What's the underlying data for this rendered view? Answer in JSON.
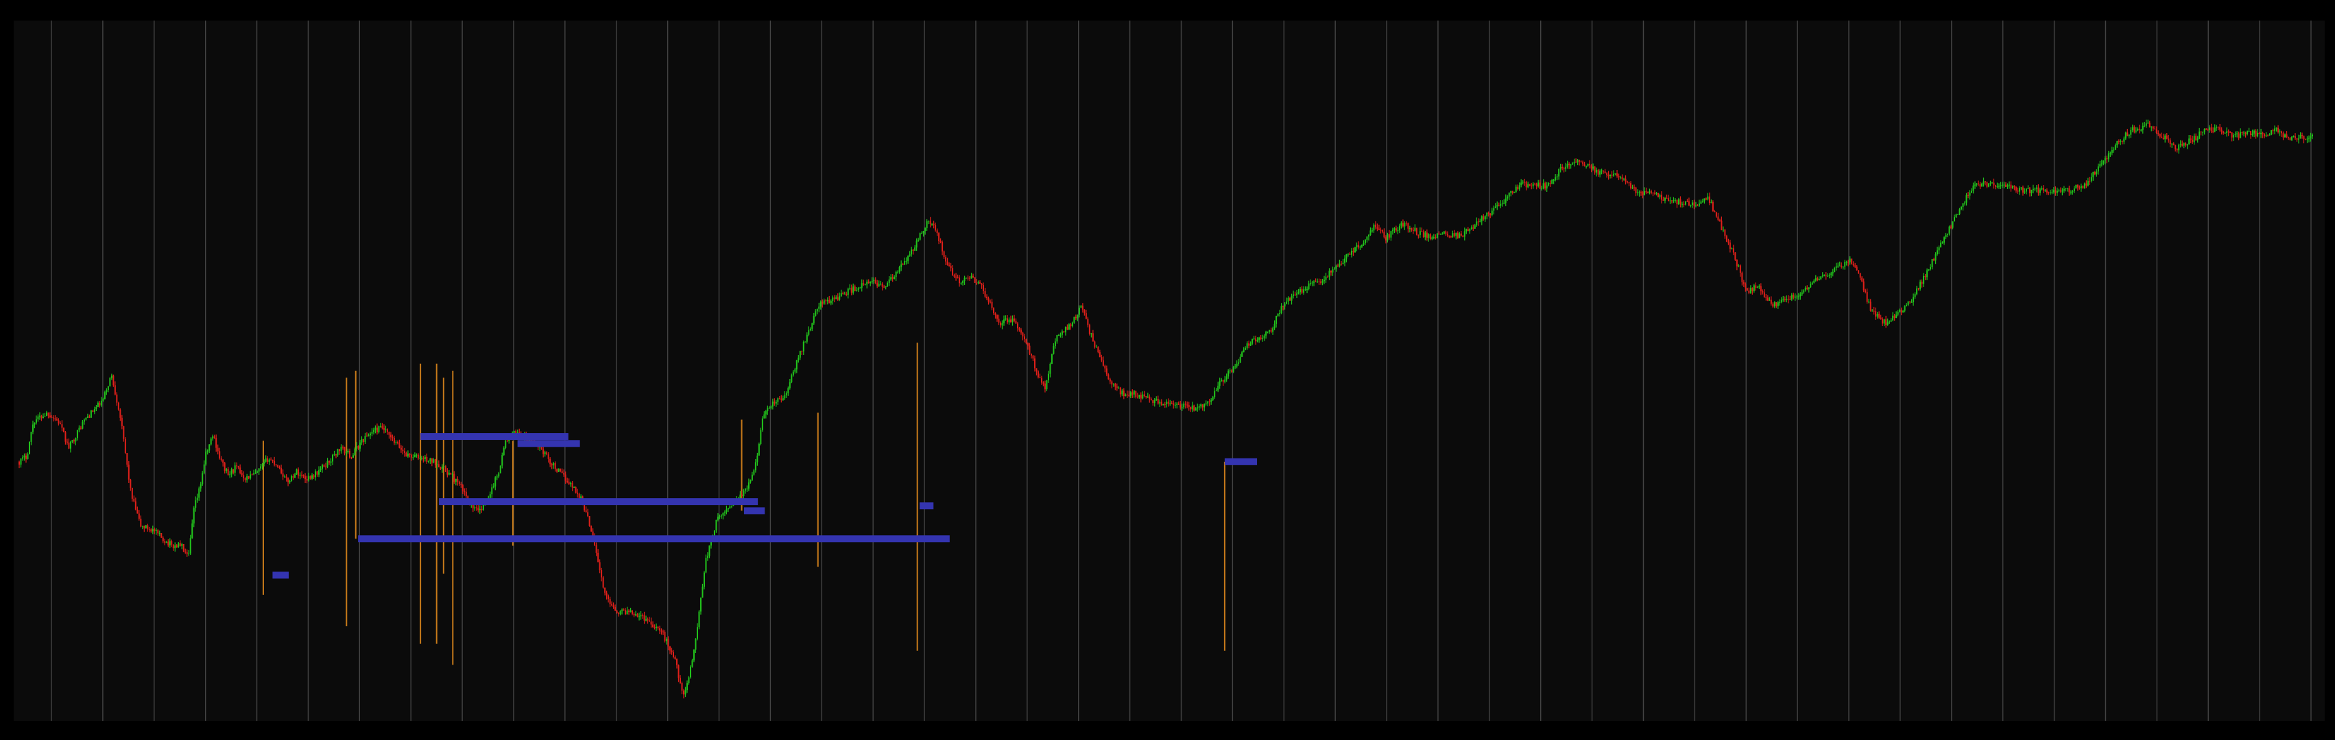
{
  "theme": {
    "background": "#000000",
    "plot_background": "#0b0b0b",
    "gridline": "#444444",
    "up_candle": "#22c51c",
    "down_candle": "#e0201a",
    "level_color": "#3434b0",
    "volume_spike": "#c77a1a"
  },
  "chart_data": {
    "type": "candlestick",
    "grid": true,
    "title": "",
    "xlabel": "",
    "ylabel": "",
    "x_range": [
      0,
      1000
    ],
    "y_range": [
      0,
      1000
    ],
    "vertical_gridline_count": 45,
    "price_path": [
      [
        0,
        370
      ],
      [
        8,
        378
      ],
      [
        15,
        430
      ],
      [
        30,
        442
      ],
      [
        42,
        428
      ],
      [
        52,
        390
      ],
      [
        68,
        430
      ],
      [
        88,
        460
      ],
      [
        97,
        498
      ],
      [
        106,
        440
      ],
      [
        118,
        320
      ],
      [
        128,
        275
      ],
      [
        140,
        270
      ],
      [
        152,
        255
      ],
      [
        162,
        245
      ],
      [
        170,
        248
      ],
      [
        178,
        226
      ],
      [
        184,
        300
      ],
      [
        190,
        330
      ],
      [
        196,
        378
      ],
      [
        204,
        410
      ],
      [
        212,
        372
      ],
      [
        220,
        350
      ],
      [
        228,
        362
      ],
      [
        238,
        346
      ],
      [
        250,
        352
      ],
      [
        262,
        375
      ],
      [
        272,
        365
      ],
      [
        282,
        340
      ],
      [
        292,
        355
      ],
      [
        302,
        345
      ],
      [
        312,
        352
      ],
      [
        326,
        370
      ],
      [
        338,
        390
      ],
      [
        350,
        378
      ],
      [
        360,
        400
      ],
      [
        372,
        415
      ],
      [
        382,
        420
      ],
      [
        394,
        400
      ],
      [
        408,
        380
      ],
      [
        424,
        375
      ],
      [
        440,
        368
      ],
      [
        456,
        348
      ],
      [
        466,
        330
      ],
      [
        476,
        305
      ],
      [
        484,
        295
      ],
      [
        494,
        320
      ],
      [
        504,
        352
      ],
      [
        512,
        400
      ],
      [
        524,
        415
      ],
      [
        534,
        402
      ],
      [
        548,
        392
      ],
      [
        560,
        368
      ],
      [
        570,
        352
      ],
      [
        580,
        338
      ],
      [
        592,
        315
      ],
      [
        604,
        262
      ],
      [
        616,
        175
      ],
      [
        630,
        148
      ],
      [
        644,
        150
      ],
      [
        660,
        138
      ],
      [
        676,
        120
      ],
      [
        690,
        80
      ],
      [
        700,
        20
      ],
      [
        712,
        105
      ],
      [
        722,
        220
      ],
      [
        734,
        282
      ],
      [
        748,
        305
      ],
      [
        764,
        325
      ],
      [
        774,
        355
      ],
      [
        782,
        430
      ],
      [
        792,
        455
      ],
      [
        806,
        465
      ],
      [
        822,
        530
      ],
      [
        842,
        602
      ],
      [
        858,
        610
      ],
      [
        874,
        622
      ],
      [
        888,
        630
      ],
      [
        900,
        635
      ],
      [
        912,
        628
      ],
      [
        926,
        652
      ],
      [
        940,
        680
      ],
      [
        956,
        725
      ],
      [
        966,
        710
      ],
      [
        976,
        660
      ],
      [
        990,
        635
      ],
      [
        1004,
        640
      ],
      [
        1012,
        630
      ],
      [
        1022,
        602
      ],
      [
        1032,
        575
      ],
      [
        1046,
        580
      ],
      [
        1062,
        538
      ],
      [
        1072,
        500
      ],
      [
        1080,
        480
      ],
      [
        1090,
        548
      ],
      [
        1098,
        562
      ],
      [
        1108,
        575
      ],
      [
        1118,
        598
      ],
      [
        1130,
        550
      ],
      [
        1148,
        488
      ],
      [
        1162,
        470
      ],
      [
        1176,
        470
      ],
      [
        1190,
        462
      ],
      [
        1206,
        455
      ],
      [
        1222,
        452
      ],
      [
        1238,
        448
      ],
      [
        1252,
        458
      ],
      [
        1264,
        485
      ],
      [
        1280,
        512
      ],
      [
        1296,
        548
      ],
      [
        1316,
        560
      ],
      [
        1332,
        605
      ],
      [
        1352,
        625
      ],
      [
        1374,
        640
      ],
      [
        1392,
        665
      ],
      [
        1412,
        690
      ],
      [
        1428,
        720
      ],
      [
        1438,
        698
      ],
      [
        1448,
        712
      ],
      [
        1458,
        720
      ],
      [
        1472,
        708
      ],
      [
        1486,
        700
      ],
      [
        1502,
        706
      ],
      [
        1518,
        702
      ],
      [
        1534,
        722
      ],
      [
        1552,
        740
      ],
      [
        1566,
        760
      ],
      [
        1580,
        778
      ],
      [
        1594,
        778
      ],
      [
        1608,
        776
      ],
      [
        1622,
        800
      ],
      [
        1640,
        815
      ],
      [
        1658,
        800
      ],
      [
        1672,
        792
      ],
      [
        1688,
        790
      ],
      [
        1700,
        770
      ],
      [
        1714,
        766
      ],
      [
        1732,
        758
      ],
      [
        1748,
        752
      ],
      [
        1762,
        748
      ],
      [
        1778,
        758
      ],
      [
        1790,
        722
      ],
      [
        1800,
        690
      ],
      [
        1810,
        655
      ],
      [
        1818,
        620
      ],
      [
        1830,
        628
      ],
      [
        1846,
        600
      ],
      [
        1860,
        608
      ],
      [
        1878,
        620
      ],
      [
        1894,
        640
      ],
      [
        1906,
        648
      ],
      [
        1918,
        658
      ],
      [
        1928,
        668
      ],
      [
        1938,
        640
      ],
      [
        1950,
        590
      ],
      [
        1964,
        575
      ],
      [
        1980,
        590
      ],
      [
        1994,
        612
      ],
      [
        2010,
        655
      ],
      [
        2030,
        710
      ],
      [
        2044,
        745
      ],
      [
        2058,
        778
      ],
      [
        2074,
        780
      ],
      [
        2092,
        775
      ],
      [
        2110,
        770
      ],
      [
        2128,
        770
      ],
      [
        2142,
        768
      ],
      [
        2158,
        770
      ],
      [
        2174,
        778
      ],
      [
        2190,
        805
      ],
      [
        2206,
        835
      ],
      [
        2224,
        860
      ],
      [
        2242,
        866
      ],
      [
        2256,
        850
      ],
      [
        2270,
        832
      ],
      [
        2288,
        845
      ],
      [
        2302,
        860
      ],
      [
        2318,
        860
      ],
      [
        2332,
        848
      ],
      [
        2346,
        856
      ],
      [
        2362,
        850
      ],
      [
        2376,
        860
      ],
      [
        2388,
        846
      ],
      [
        2400,
        848
      ],
      [
        2414,
        848
      ]
    ],
    "levels": [
      {
        "x_from": 0.112,
        "x_to": 0.119,
        "y": 0.208
      },
      {
        "x_from": 0.149,
        "x_to": 0.405,
        "y": 0.26
      },
      {
        "x_from": 0.176,
        "x_to": 0.24,
        "y": 0.406
      },
      {
        "x_from": 0.218,
        "x_to": 0.245,
        "y": 0.396
      },
      {
        "x_from": 0.184,
        "x_to": 0.322,
        "y": 0.313
      },
      {
        "x_from": 0.316,
        "x_to": 0.325,
        "y": 0.3
      },
      {
        "x_from": 0.392,
        "x_to": 0.398,
        "y": 0.307
      },
      {
        "x_from": 0.524,
        "x_to": 0.538,
        "y": 0.37
      }
    ],
    "spikes": [
      {
        "x": 0.108,
        "y_top": 0.4,
        "y_bottom": 0.18
      },
      {
        "x": 0.144,
        "y_top": 0.135,
        "y_bottom": 0.49
      },
      {
        "x": 0.148,
        "y_top": 0.5,
        "y_bottom": 0.26
      },
      {
        "x": 0.176,
        "y_top": 0.11,
        "y_bottom": 0.51
      },
      {
        "x": 0.183,
        "y_top": 0.11,
        "y_bottom": 0.51
      },
      {
        "x": 0.186,
        "y_top": 0.21,
        "y_bottom": 0.49
      },
      {
        "x": 0.19,
        "y_top": 0.08,
        "y_bottom": 0.5
      },
      {
        "x": 0.216,
        "y_top": 0.4,
        "y_bottom": 0.25
      },
      {
        "x": 0.315,
        "y_top": 0.43,
        "y_bottom": 0.3
      },
      {
        "x": 0.348,
        "y_top": 0.22,
        "y_bottom": 0.44
      },
      {
        "x": 0.391,
        "y_top": 0.1,
        "y_bottom": 0.54
      },
      {
        "x": 0.524,
        "y_top": 0.1,
        "y_bottom": 0.37
      }
    ]
  }
}
